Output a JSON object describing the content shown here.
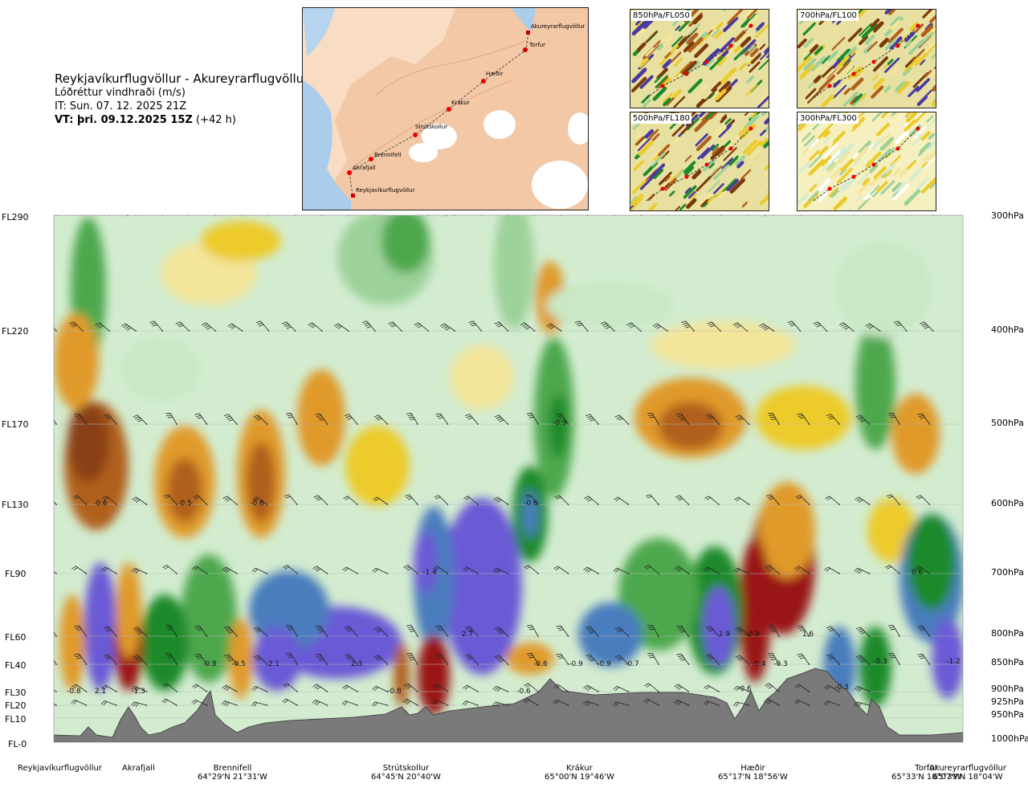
{
  "header": {
    "route": "Reykjavíkurflugvöllur - Akureyrarflugvöllur",
    "parameter": "Lóðréttur vindhraði (m/s)",
    "issue_time": "IT: Sun. 07. 12. 2025 21Z",
    "valid_prefix": "VT: þri. 09.12.2025 15Z",
    "valid_suffix": "(+42 h)"
  },
  "map": {
    "places": [
      {
        "name": "Akureyrarflugvöllur"
      },
      {
        "name": "Torfur"
      },
      {
        "name": "Hæðir"
      },
      {
        "name": "Krákur"
      },
      {
        "name": "Strútskollur"
      },
      {
        "name": "Brennifell"
      },
      {
        "name": "Akrafjall"
      },
      {
        "name": "Reykjavíkurflugvöllur"
      }
    ]
  },
  "insets": [
    {
      "label": "850hPa/FL050"
    },
    {
      "label": "700hPa/FL100"
    },
    {
      "label": "500hPa/FL180"
    },
    {
      "label": "300hPa/FL300"
    }
  ],
  "chart_data": {
    "type": "heatmap",
    "title": "Lóðréttur vindhraði (m/s)",
    "y_left_labels": [
      "FL290",
      "FL220",
      "FL170",
      "FL130",
      "FL90",
      "FL60",
      "FL40",
      "FL30",
      "FL20",
      "FL10",
      "FL-0"
    ],
    "y_right_labels": [
      "300hPa",
      "400hPa",
      "500hPa",
      "600hPa",
      "700hPa",
      "800hPa",
      "850hPa",
      "900hPa",
      "925hPa",
      "950hPa",
      "1000hPa"
    ],
    "x_locations": [
      {
        "name": "Reykjavíkurflugvöllur",
        "coord": ""
      },
      {
        "name": "Akrafjall",
        "coord": ""
      },
      {
        "name": "Brennifell",
        "coord": "64°29'N 21°31'W"
      },
      {
        "name": "Strútskollur",
        "coord": "64°45'N 20°40'W"
      },
      {
        "name": "Krákur",
        "coord": "65°00'N 19°46'W"
      },
      {
        "name": "Hæðir",
        "coord": "65°17'N 18°56'W"
      },
      {
        "name": "Torfur",
        "coord": "65°33'N 18°07'W"
      },
      {
        "name": "Akureyrarflugvöllur",
        "coord": "65°39'N 18°04'W"
      }
    ],
    "value_labels": [
      "-0.8",
      "-0.6",
      "-0.5",
      "-0.6",
      "-1.4",
      "2.7",
      "-0.8",
      "-0.5",
      "2.1",
      "2.3",
      "-0.6",
      "-0.9",
      "-0.9",
      "-0.7",
      "1.9",
      "-0.9",
      "1.6",
      "-0.6",
      "-0.4",
      "-0.3",
      "-0.3",
      "-0.6",
      "2.1",
      "-1.3",
      "-0.6",
      "-0.3",
      "-0.8",
      "0.6",
      "-1.2",
      "-0.9"
    ],
    "grid": false
  }
}
